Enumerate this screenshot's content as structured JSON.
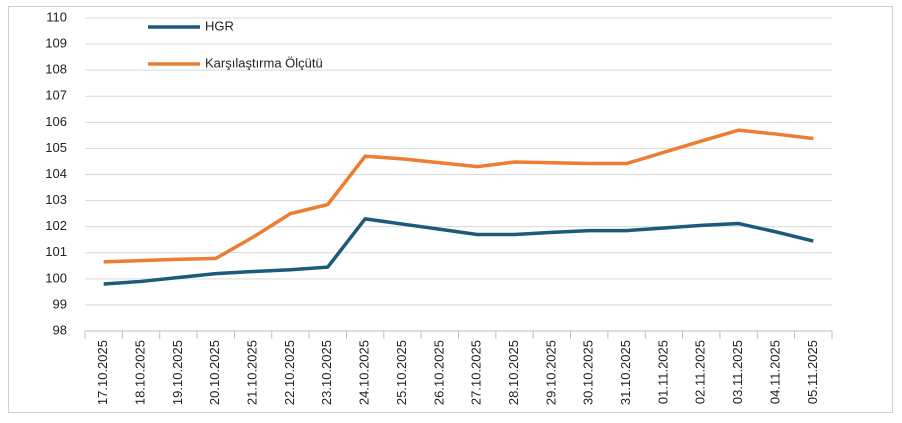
{
  "chart_data": {
    "type": "line",
    "categories": [
      "17.10.2025",
      "18.10.2025",
      "19.10.2025",
      "20.10.2025",
      "21.10.2025",
      "22.10.2025",
      "23.10.2025",
      "24.10.2025",
      "25.10.2025",
      "26.10.2025",
      "27.10.2025",
      "28.10.2025",
      "29.10.2025",
      "30.10.2025",
      "31.10.2025",
      "01.11.2025",
      "02.11.2025",
      "03.11.2025",
      "04.11.2025",
      "05.11.2025"
    ],
    "series": [
      {
        "name": "HGR",
        "color": "#1d5a7a",
        "values": [
          99.8,
          99.9,
          100.05,
          100.2,
          100.28,
          100.35,
          100.45,
          102.3,
          102.1,
          101.9,
          101.7,
          101.7,
          101.78,
          101.85,
          101.85,
          101.95,
          102.05,
          102.12,
          101.8,
          101.45
        ]
      },
      {
        "name": "Karşılaştırma Ölçütü",
        "color": "#ed7d31",
        "values": [
          100.65,
          100.7,
          100.75,
          100.78,
          101.6,
          102.5,
          102.85,
          104.7,
          104.6,
          104.45,
          104.3,
          104.48,
          104.45,
          104.42,
          104.42,
          104.85,
          105.28,
          105.7,
          105.55,
          105.38
        ]
      }
    ],
    "ylim": [
      98,
      110
    ],
    "yticks": [
      98,
      99,
      100,
      101,
      102,
      103,
      104,
      105,
      106,
      107,
      108,
      109,
      110
    ],
    "grid": true,
    "legend": "top-left"
  }
}
